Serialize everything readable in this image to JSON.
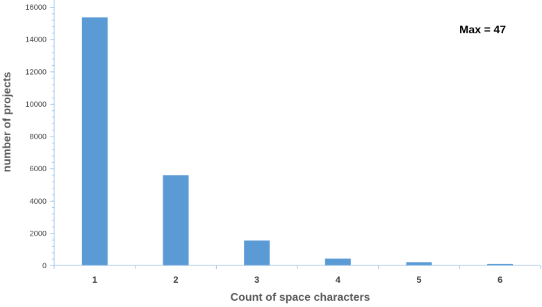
{
  "chart_data": {
    "type": "bar",
    "categories": [
      "1",
      "2",
      "3",
      "4",
      "5",
      "6"
    ],
    "values": [
      15350,
      5580,
      1540,
      420,
      200,
      90
    ],
    "title": "",
    "xlabel": "Count of space characters",
    "ylabel": "number of projects",
    "ylim": [
      0,
      16000
    ],
    "yticks": [
      "0",
      "2000",
      "4000",
      "6000",
      "8000",
      "10000",
      "12000",
      "14000",
      "16000"
    ],
    "annotation": "Max = 47",
    "grid": false,
    "legend": "none",
    "bar_color": "#5b9bd5",
    "axis_color": "#9dc3e6"
  }
}
